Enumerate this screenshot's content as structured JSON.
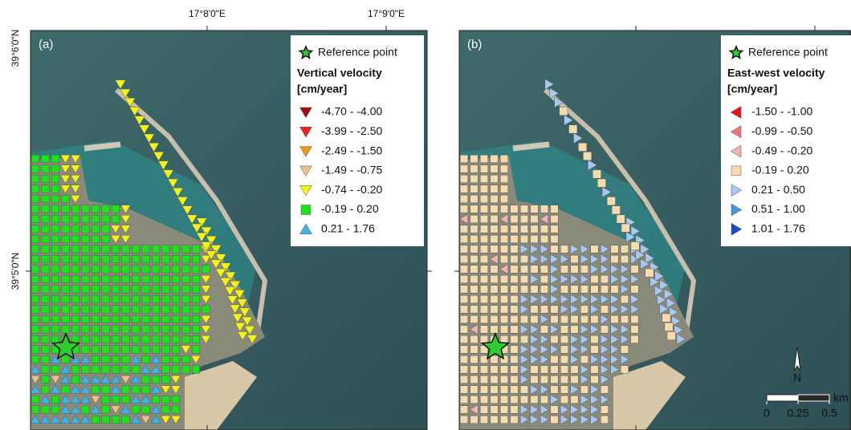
{
  "coordinates": {
    "top": [
      "17°8'0\"E",
      "17°9'0\"E"
    ],
    "left": [
      "39°6'0\"N",
      "39°5'0\"N"
    ]
  },
  "panels": [
    {
      "label": "(a)",
      "legend": {
        "reference": "Reference point",
        "title": "Vertical velocity",
        "unit": "[cm/year]",
        "classes": [
          {
            "label": "-4.70 - -4.00",
            "shape": "triangle-down",
            "color": "#a01010"
          },
          {
            "label": "-3.99 - -2.50",
            "shape": "triangle-down",
            "color": "#e8241c"
          },
          {
            "label": "-2.49 - -1.50",
            "shape": "triangle-down",
            "color": "#f0961e"
          },
          {
            "label": "-1.49 - -0.75",
            "shape": "triangle-down",
            "color": "#e8c088"
          },
          {
            "label": "-0.74 - -0.20",
            "shape": "triangle-down",
            "color": "#f2f21e"
          },
          {
            "label": "-0.19 - 0.20",
            "shape": "square",
            "color": "#1ee01e"
          },
          {
            "label": "0.21 - 1.76",
            "shape": "triangle-up",
            "color": "#3cb4e8"
          }
        ]
      }
    },
    {
      "label": "(b)",
      "legend": {
        "reference": "Reference point",
        "title": "East-west velocity",
        "unit": "[cm/year]",
        "classes": [
          {
            "label": "-1.50 - -1.00",
            "shape": "triangle-left",
            "color": "#e8141c"
          },
          {
            "label": "-0.99 - -0.50",
            "shape": "triangle-left",
            "color": "#e8787c"
          },
          {
            "label": "-0.49 - -0.20",
            "shape": "triangle-left",
            "color": "#f0b4b4"
          },
          {
            "label": "-0.19 - 0.20",
            "shape": "square",
            "color": "#f5dcb0"
          },
          {
            "label": "0.21 - 0.50",
            "shape": "triangle-right",
            "color": "#a8c8f0"
          },
          {
            "label": "0.51 - 1.00",
            "shape": "triangle-right",
            "color": "#4896e0"
          },
          {
            "label": "1.01 - 1.76",
            "shape": "triangle-right",
            "color": "#1450c8"
          }
        ]
      }
    }
  ],
  "scale_bar": {
    "unit": "km",
    "ticks": [
      0,
      0.25,
      0.5
    ]
  },
  "north": "N"
}
